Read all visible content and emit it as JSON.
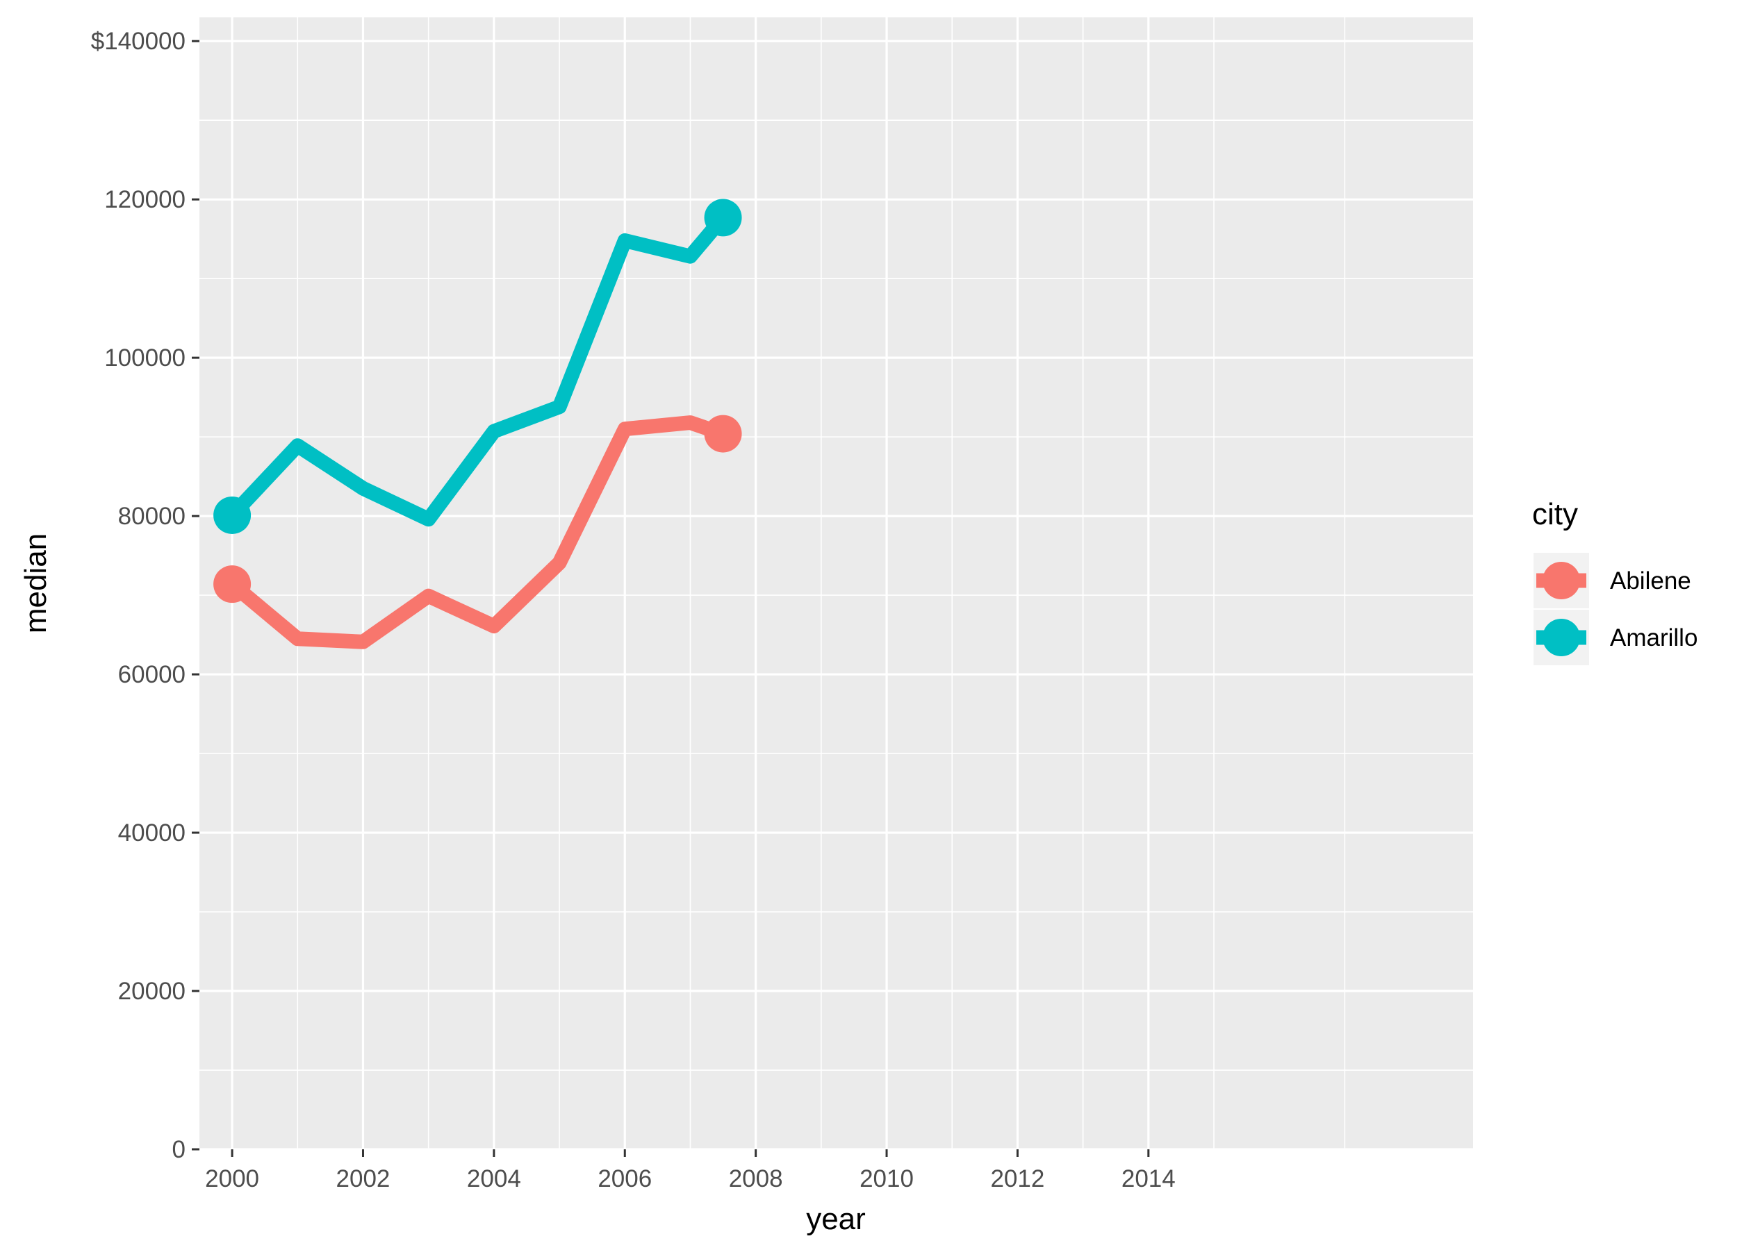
{
  "chart_data": {
    "type": "line",
    "xlabel": "year",
    "ylabel": "median",
    "x_ticks": [
      "2000",
      "2002",
      "2004",
      "2006",
      "2008",
      "2010",
      "2012",
      "2014"
    ],
    "y_ticks": [
      "0",
      "20000",
      "40000",
      "60000",
      "80000",
      "100000",
      "120000",
      "$140000"
    ],
    "xlim": [
      1999.5,
      2018.96
    ],
    "ylim": [
      0,
      143000
    ],
    "grid": true,
    "legend_title": "city",
    "legend_position": "right",
    "series": [
      {
        "name": "Abilene",
        "color": "#F8766D",
        "x": [
          2000,
          2001,
          2002,
          2003,
          2004,
          2005,
          2006,
          2007,
          2007.5
        ],
        "y": [
          71400,
          64500,
          64100,
          69900,
          66100,
          74100,
          91000,
          91800,
          90400
        ],
        "endpoints": [
          [
            2000,
            71400
          ],
          [
            2007.5,
            90400
          ]
        ]
      },
      {
        "name": "Amarillo",
        "color": "#00BFC4",
        "x": [
          2000,
          2001,
          2002,
          2003,
          2004,
          2005,
          2006,
          2007,
          2007.5
        ],
        "y": [
          80100,
          88900,
          83500,
          79600,
          90700,
          93800,
          114800,
          112800,
          117700
        ],
        "endpoints": [
          [
            2000,
            80100
          ],
          [
            2007.5,
            117700
          ]
        ]
      }
    ]
  }
}
